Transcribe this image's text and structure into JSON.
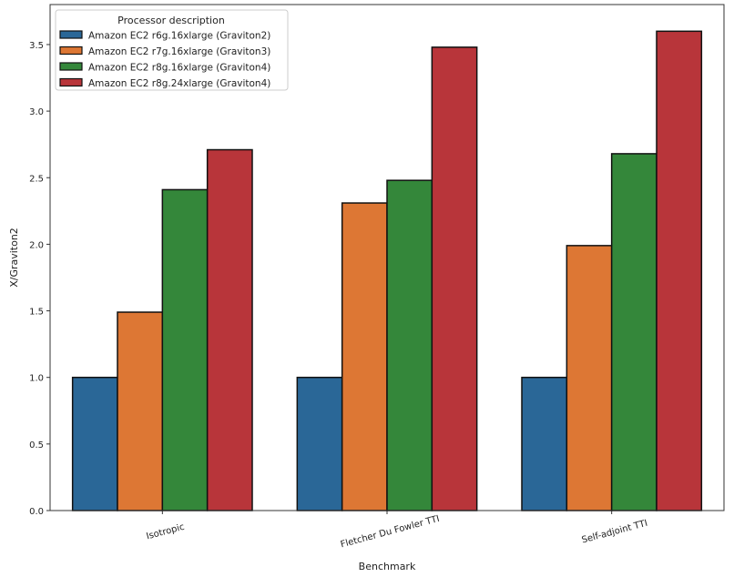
{
  "chart_data": {
    "type": "bar",
    "xlabel": "Benchmark",
    "ylabel": "X/Graviton2",
    "ylim": [
      0,
      3.8
    ],
    "yticks": [
      "0.0",
      "0.5",
      "1.0",
      "1.5",
      "2.0",
      "2.5",
      "3.0",
      "3.5"
    ],
    "categories": [
      "Isotropic",
      "Fletcher Du Fowler TTI",
      "Self-adjoint TTI"
    ],
    "grid": false,
    "legend": {
      "title": "Processor description",
      "placement": "top-left"
    },
    "series": [
      {
        "name": "Amazon EC2 r6g.16xlarge (Graviton2)",
        "color": "#2a6797",
        "values": [
          1.0,
          1.0,
          1.0
        ]
      },
      {
        "name": "Amazon EC2 r7g.16xlarge (Graviton3)",
        "color": "#dd7734",
        "values": [
          1.49,
          2.31,
          1.99
        ]
      },
      {
        "name": "Amazon EC2 r8g.16xlarge (Graviton4)",
        "color": "#34873a",
        "values": [
          2.41,
          2.48,
          2.68
        ]
      },
      {
        "name": "Amazon EC2 r8g.24xlarge (Graviton4)",
        "color": "#b8353a",
        "values": [
          2.71,
          3.48,
          3.6
        ]
      }
    ]
  }
}
